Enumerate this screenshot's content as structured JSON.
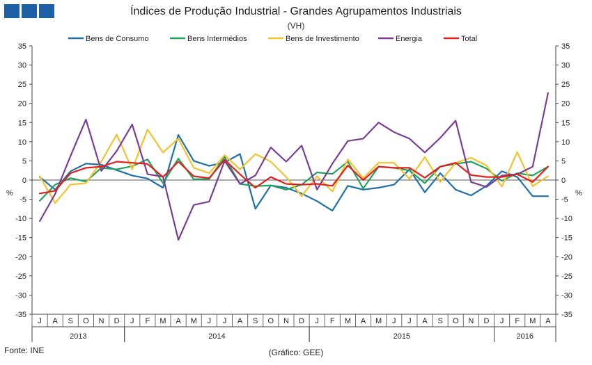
{
  "header": {
    "brand_icon": "ine-blocks-logo",
    "brand_color": "#1f5fa6"
  },
  "footer": {
    "source": "Fonte: INE",
    "credit": "(Gráfico: GEE)"
  },
  "chart_data": {
    "type": "line",
    "title": "Índices de Produção Industrial - Grandes Agrupamentos Industriais",
    "subtitle": "(VH)",
    "ylabel": "%",
    "ylabel_right": "%",
    "ylim": [
      -35,
      35
    ],
    "yticks": [
      35,
      30,
      25,
      20,
      15,
      10,
      5,
      0,
      -5,
      -10,
      -15,
      -20,
      -25,
      -30,
      -35
    ],
    "grid": false,
    "legend_position": "top",
    "categories": [
      "J",
      "A",
      "S",
      "O",
      "N",
      "D",
      "J",
      "F",
      "M",
      "A",
      "M",
      "J",
      "J",
      "A",
      "S",
      "O",
      "N",
      "D",
      "J",
      "F",
      "M",
      "A",
      "M",
      "J",
      "J",
      "A",
      "S",
      "O",
      "N",
      "D",
      "J",
      "F",
      "M",
      "A"
    ],
    "years": [
      {
        "label": "2013",
        "start": 0,
        "count": 6
      },
      {
        "label": "2014",
        "start": 6,
        "count": 12
      },
      {
        "label": "2015",
        "start": 18,
        "count": 12
      },
      {
        "label": "2016",
        "start": 30,
        "count": 4
      }
    ],
    "series": [
      {
        "name": "Bens de Consumo",
        "color": "#1e6fa8",
        "values": [
          0.8,
          -2.5,
          2.3,
          4.3,
          4.0,
          2.6,
          1.2,
          0.4,
          -2.0,
          11.8,
          5.0,
          3.7,
          4.6,
          6.8,
          -7.5,
          -1.4,
          -2.0,
          -3.5,
          -5.5,
          -8.0,
          -1.5,
          -2.5,
          -2.0,
          -1.2,
          2.8,
          -3.2,
          1.8,
          -2.5,
          -4.0,
          -1.5,
          2.3,
          0.8,
          -4.2,
          -4.2
        ]
      },
      {
        "name": "Bens Intermédios",
        "color": "#1fa35c",
        "values": [
          -5.4,
          -1.2,
          0.5,
          -0.4,
          3.2,
          2.8,
          3.6,
          5.4,
          -0.8,
          5.6,
          0.2,
          0.3,
          6.0,
          -1.0,
          -1.6,
          -1.4,
          -2.5,
          -1.2,
          2.0,
          1.6,
          4.8,
          -2.2,
          3.5,
          3.2,
          2.5,
          -0.8,
          3.5,
          4.2,
          4.8,
          3.0,
          -0.2,
          1.8,
          1.2,
          3.5
        ]
      },
      {
        "name": "Bens de Investimento",
        "color": "#f2c12e",
        "values": [
          1.0,
          -6.0,
          -1.2,
          -0.8,
          4.8,
          11.9,
          2.8,
          13.2,
          7.2,
          10.8,
          3.2,
          1.8,
          6.5,
          2.8,
          6.8,
          4.8,
          0.8,
          -4.2,
          1.0,
          -3.0,
          5.4,
          0.5,
          4.5,
          4.5,
          0.3,
          6.0,
          -0.5,
          4.5,
          5.8,
          3.8,
          -1.7,
          7.3,
          -1.6,
          1.0
        ]
      },
      {
        "name": "Energia",
        "color": "#7a3d96",
        "values": [
          -10.7,
          -3.6,
          6.3,
          15.8,
          2.4,
          7.6,
          14.5,
          1.5,
          0.9,
          -15.6,
          -6.5,
          -5.6,
          5.0,
          -1.0,
          1.2,
          8.5,
          4.8,
          9.0,
          -2.5,
          4.3,
          10.2,
          10.8,
          15.0,
          12.5,
          10.8,
          7.2,
          11.0,
          15.5,
          -0.5,
          -1.8,
          1.2,
          1.5,
          3.5,
          22.7
        ]
      },
      {
        "name": "Total",
        "color": "#e0201b",
        "values": [
          -3.5,
          -2.8,
          1.8,
          3.2,
          3.5,
          4.8,
          4.5,
          4.2,
          0.8,
          4.8,
          1.0,
          0.5,
          5.3,
          1.5,
          -2.0,
          0.8,
          -1.0,
          -1.2,
          -1.0,
          -1.5,
          3.8,
          0.0,
          3.5,
          3.2,
          3.2,
          0.6,
          3.5,
          4.5,
          1.3,
          0.8,
          0.8,
          1.5,
          -0.5,
          3.5
        ]
      }
    ]
  }
}
